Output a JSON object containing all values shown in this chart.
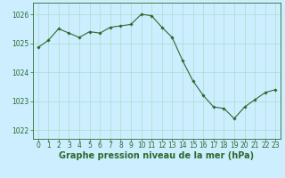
{
  "x": [
    0,
    1,
    2,
    3,
    4,
    5,
    6,
    7,
    8,
    9,
    10,
    11,
    12,
    13,
    14,
    15,
    16,
    17,
    18,
    19,
    20,
    21,
    22,
    23
  ],
  "y": [
    1024.85,
    1025.1,
    1025.5,
    1025.35,
    1025.2,
    1025.4,
    1025.35,
    1025.55,
    1025.6,
    1025.65,
    1026.0,
    1025.95,
    1025.55,
    1025.2,
    1024.4,
    1023.7,
    1023.2,
    1022.8,
    1022.75,
    1022.4,
    1022.8,
    1023.05,
    1023.3,
    1023.4
  ],
  "line_color": "#2d6a2d",
  "marker": "D",
  "marker_size": 1.8,
  "bg_color": "#cceeff",
  "grid_color": "#aaddcc",
  "xlabel": "Graphe pression niveau de la mer (hPa)",
  "xlabel_color": "#2d6a2d",
  "xlabel_fontsize": 7,
  "tick_label_color": "#2d6a2d",
  "tick_fontsize": 5.5,
  "yticks": [
    1022,
    1023,
    1024,
    1025,
    1026
  ],
  "xticks": [
    0,
    1,
    2,
    3,
    4,
    5,
    6,
    7,
    8,
    9,
    10,
    11,
    12,
    13,
    14,
    15,
    16,
    17,
    18,
    19,
    20,
    21,
    22,
    23
  ],
  "ylim": [
    1021.7,
    1026.4
  ],
  "xlim": [
    -0.5,
    23.5
  ]
}
